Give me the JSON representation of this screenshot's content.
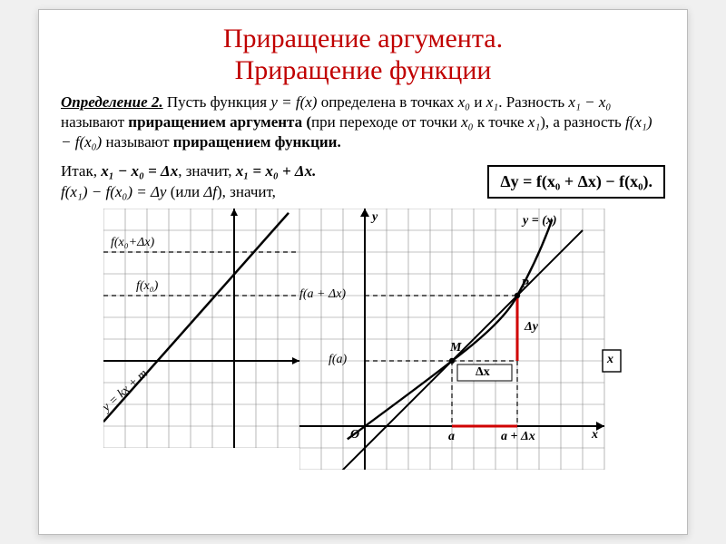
{
  "title_line1": "Приращение аргумента.",
  "title_line2": "Приращение функции",
  "definition": {
    "head": "Определение 2.",
    "t1": " Пусть функция ",
    "f_yfx": "y = f(x)",
    "t2": " определена в точках ",
    "x0": "x₀",
    "t_and": " и ",
    "x1": "x₁",
    "t3": ". Разность ",
    "diff1": "x₁ − x₀",
    "t4": " называют ",
    "term1": "приращением аргумента (",
    "t5": "при переходе от точки ",
    "t6": " к точке ",
    "t7": "), а разность ",
    "diff2": "f(x₁) − f(x₀)",
    "t8": " называют ",
    "term2": "приращением функции."
  },
  "itak": {
    "l1a": "Итак,  ",
    "l1b": "x₁ − x₀ = Δx",
    "l1c": ",  значит,  ",
    "l1d": "x₁ = x₀ + Δx.",
    "l2a": "f(x₁) − f(x₀) = Δy",
    "l2b": "  (или  ",
    "l2c": "Δf",
    "l2d": "),  значит,"
  },
  "formula_box": "Δy = f(x₀ + Δx) − f(x₀).",
  "left_chart": {
    "grid_color": "#888888",
    "axis_color": "#000000",
    "line_color": "#000000",
    "dash_color": "#000000",
    "cell": 24,
    "cols": 9,
    "rows": 11,
    "origin_col": 6,
    "origin_row": 7,
    "labels": {
      "fx0dx": "f(x₀+Δx)",
      "fx": "f(x₀)",
      "ykxm": "y = kx + m"
    }
  },
  "right_chart": {
    "grid_color": "#888888",
    "axis_color": "#000000",
    "curve_color": "#000000",
    "red_color": "#d00000",
    "cell": 24,
    "cols": 14,
    "rows": 12,
    "origin_col": 3,
    "origin_row": 10,
    "a_col": 7,
    "adx_col": 10,
    "fa_row": 7,
    "fadx_row": 4,
    "labels": {
      "yfx": "y = (x)",
      "fadx": "f(a + Δx)",
      "fa": "f(a)",
      "P": "P",
      "M": "M",
      "dy": "Δy",
      "dx": "Δx",
      "O": "O",
      "a": "a",
      "adx": "a + Δx",
      "x": "x",
      "y": "y",
      "x_side": "x"
    }
  }
}
